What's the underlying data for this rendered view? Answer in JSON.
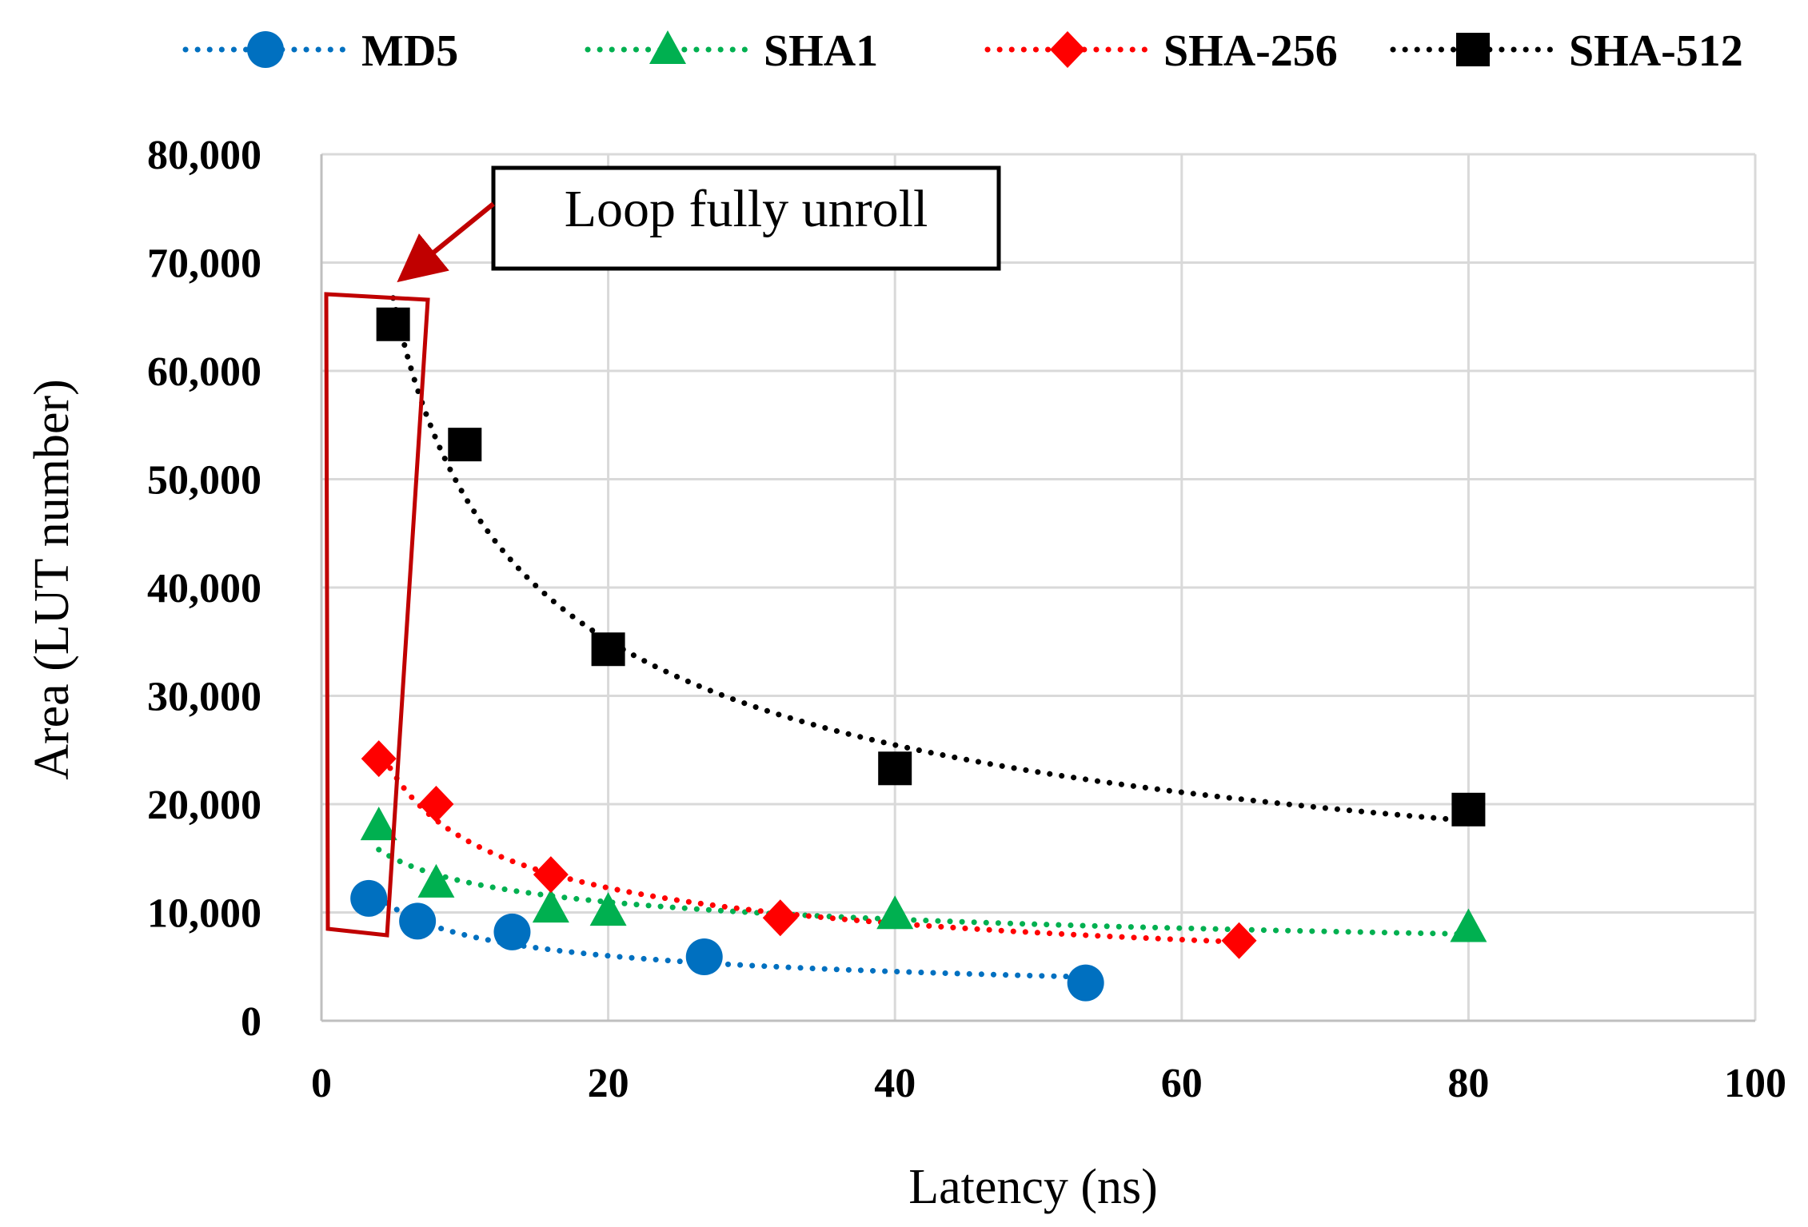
{
  "chart_data": {
    "type": "scatter",
    "xlabel": "Latency (ns)",
    "ylabel": "Area (LUT number)",
    "xlim": [
      0,
      100
    ],
    "ylim": [
      0,
      80000
    ],
    "xticks": [
      0,
      20,
      40,
      60,
      80,
      100
    ],
    "yticks": [
      0,
      10000,
      20000,
      30000,
      40000,
      50000,
      60000,
      70000,
      80000
    ],
    "xtick_labels": [
      "0",
      "20",
      "40",
      "60",
      "80",
      "100"
    ],
    "ytick_labels": [
      "0",
      "10,000",
      "20,000",
      "30,000",
      "40,000",
      "50,000",
      "60,000",
      "70,000",
      "80,000"
    ],
    "grid": true,
    "legend_position": "top",
    "annotation": {
      "text": "Loop fully unroll"
    },
    "series": [
      {
        "name": "MD5",
        "marker": "circle",
        "color": "#0070C0",
        "x": [
          3.3,
          6.7,
          13.3,
          26.7,
          53.3
        ],
        "y": [
          11300,
          9200,
          8200,
          5900,
          3500
        ],
        "trend": "power"
      },
      {
        "name": "SHA1",
        "marker": "triangle",
        "color": "#00B050",
        "x": [
          4,
          8,
          16,
          20,
          40,
          80
        ],
        "y": [
          18000,
          12700,
          10400,
          10100,
          9800,
          8600
        ],
        "trend": "power"
      },
      {
        "name": "SHA-256",
        "marker": "diamond",
        "color": "#FF0000",
        "x": [
          4,
          8,
          16,
          32,
          64
        ],
        "y": [
          24200,
          20000,
          13500,
          9500,
          7400
        ],
        "trend": "power"
      },
      {
        "name": "SHA-512",
        "marker": "square",
        "color": "#000000",
        "x": [
          5,
          10,
          20,
          40,
          80
        ],
        "y": [
          64300,
          53200,
          34300,
          23300,
          19500
        ],
        "trend": "power"
      }
    ]
  }
}
